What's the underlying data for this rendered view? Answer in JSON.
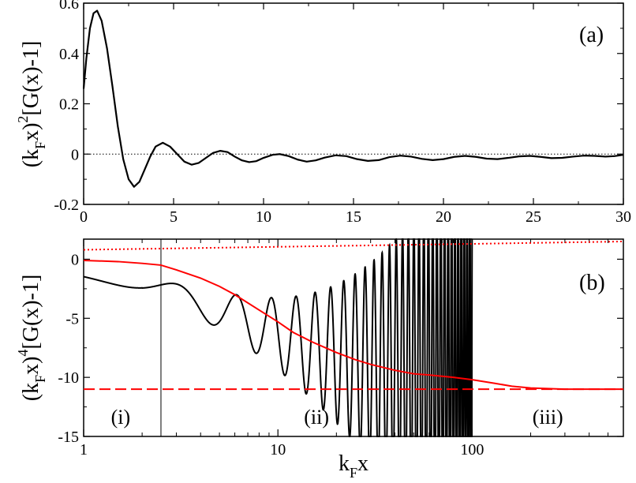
{
  "chart_data": [
    {
      "type": "line",
      "panel_label": "(a)",
      "ylabel": {
        "pre": "(k",
        "sub": "F",
        "mid": "x)",
        "sup": "2",
        "post": "[G(x)-1]"
      },
      "xlim": [
        0,
        30
      ],
      "ylim": [
        -0.2,
        0.6
      ],
      "x_ticks": [
        0,
        5,
        10,
        15,
        20,
        25,
        30
      ],
      "x_tick_labels": [
        "0",
        "5",
        "10",
        "15",
        "20",
        "25",
        "30"
      ],
      "y_ticks": [
        -0.2,
        0,
        0.2,
        0.4,
        0.6
      ],
      "y_tick_labels": [
        "-0.2",
        "0",
        "0.2",
        "0.4",
        "0.6"
      ],
      "reference_line": {
        "y": 0,
        "style": "dotted",
        "color": "#000000"
      },
      "series": [
        {
          "color": "#000000",
          "style": "solid",
          "points": [
            [
              0,
              0.26
            ],
            [
              0.15,
              0.38
            ],
            [
              0.35,
              0.5
            ],
            [
              0.55,
              0.56
            ],
            [
              0.75,
              0.57
            ],
            [
              1.0,
              0.53
            ],
            [
              1.3,
              0.42
            ],
            [
              1.6,
              0.27
            ],
            [
              1.9,
              0.11
            ],
            [
              2.2,
              -0.02
            ],
            [
              2.5,
              -0.1
            ],
            [
              2.8,
              -0.13
            ],
            [
              3.1,
              -0.11
            ],
            [
              3.4,
              -0.06
            ],
            [
              3.7,
              -0.01
            ],
            [
              4.0,
              0.03
            ],
            [
              4.4,
              0.045
            ],
            [
              4.8,
              0.03
            ],
            [
              5.2,
              0.0
            ],
            [
              5.6,
              -0.03
            ],
            [
              6.0,
              -0.042
            ],
            [
              6.4,
              -0.035
            ],
            [
              6.8,
              -0.015
            ],
            [
              7.2,
              0.005
            ],
            [
              7.6,
              0.013
            ],
            [
              8.0,
              0.008
            ],
            [
              8.4,
              -0.01
            ],
            [
              8.8,
              -0.025
            ],
            [
              9.2,
              -0.032
            ],
            [
              9.6,
              -0.028
            ],
            [
              10.0,
              -0.015
            ],
            [
              10.5,
              -0.003
            ],
            [
              10.9,
              0.0
            ],
            [
              11.4,
              -0.008
            ],
            [
              11.9,
              -0.022
            ],
            [
              12.4,
              -0.03
            ],
            [
              12.9,
              -0.025
            ],
            [
              13.4,
              -0.014
            ],
            [
              14.0,
              -0.005
            ],
            [
              14.6,
              -0.008
            ],
            [
              15.2,
              -0.02
            ],
            [
              15.8,
              -0.027
            ],
            [
              16.4,
              -0.024
            ],
            [
              17.0,
              -0.012
            ],
            [
              17.6,
              -0.006
            ],
            [
              18.2,
              -0.01
            ],
            [
              18.8,
              -0.019
            ],
            [
              19.4,
              -0.024
            ],
            [
              20.0,
              -0.02
            ],
            [
              20.6,
              -0.011
            ],
            [
              21.2,
              -0.007
            ],
            [
              21.8,
              -0.011
            ],
            [
              22.4,
              -0.018
            ],
            [
              23.0,
              -0.02
            ],
            [
              23.6,
              -0.015
            ],
            [
              24.2,
              -0.009
            ],
            [
              24.8,
              -0.007
            ],
            [
              25.4,
              -0.011
            ],
            [
              26.0,
              -0.016
            ],
            [
              26.6,
              -0.015
            ],
            [
              27.2,
              -0.01
            ],
            [
              27.8,
              -0.006
            ],
            [
              28.4,
              -0.007
            ],
            [
              29.0,
              -0.01
            ],
            [
              29.5,
              -0.008
            ],
            [
              30.0,
              -0.003
            ]
          ]
        }
      ]
    },
    {
      "type": "line",
      "panel_label": "(b)",
      "xlabel": {
        "pre": "k",
        "sub": "F",
        "post": "x"
      },
      "ylabel": {
        "pre": "(k",
        "sub": "F",
        "mid": "x)",
        "sup": "4",
        "post": "[G(x)-1]"
      },
      "x_scale": "log",
      "xlim": [
        1,
        600
      ],
      "ylim": [
        -15,
        1.7
      ],
      "x_ticks": [
        1,
        10,
        100
      ],
      "x_tick_labels": [
        "1",
        "10",
        "100"
      ],
      "y_ticks": [
        -15,
        -10,
        -5,
        0
      ],
      "y_tick_labels": [
        "-15",
        "-10",
        "-5",
        "0"
      ],
      "vertical_lines": [
        2.5,
        100
      ],
      "regions": [
        {
          "label": "(i)",
          "x": 1.55,
          "y": -13.4
        },
        {
          "label": "(ii)",
          "x": 15.8,
          "y": -13.4
        },
        {
          "label": "(iii)",
          "x": 245,
          "y": -13.4
        }
      ],
      "series": [
        {
          "color": "#000000",
          "style": "solid",
          "description": "oscillating",
          "oscillating": true
        },
        {
          "color": "#ff0000",
          "style": "solid",
          "description": "smooth",
          "points": [
            [
              1,
              -0.1
            ],
            [
              1.5,
              -0.2
            ],
            [
              2,
              -0.35
            ],
            [
              2.5,
              -0.5
            ],
            [
              3,
              -0.9
            ],
            [
              4,
              -1.6
            ],
            [
              5,
              -2.3
            ],
            [
              6,
              -3.0
            ],
            [
              8,
              -4.3
            ],
            [
              10,
              -5.3
            ],
            [
              12,
              -6.2
            ],
            [
              15,
              -7.0
            ],
            [
              20,
              -7.9
            ],
            [
              25,
              -8.5
            ],
            [
              30,
              -8.9
            ],
            [
              40,
              -9.4
            ],
            [
              50,
              -9.7
            ],
            [
              60,
              -9.8
            ],
            [
              80,
              -10.0
            ],
            [
              100,
              -10.2
            ],
            [
              130,
              -10.5
            ],
            [
              160,
              -10.75
            ],
            [
              200,
              -10.9
            ],
            [
              300,
              -11.0
            ],
            [
              600,
              -11.0
            ]
          ]
        },
        {
          "color": "#ff0000",
          "style": "dashed",
          "description": "asymptote",
          "y": -11
        },
        {
          "color": "#ff0000",
          "style": "dotted",
          "description": "upper",
          "points": [
            [
              1,
              0.8
            ],
            [
              10,
              1.05
            ],
            [
              100,
              1.3
            ],
            [
              600,
              1.5
            ]
          ]
        }
      ]
    }
  ]
}
